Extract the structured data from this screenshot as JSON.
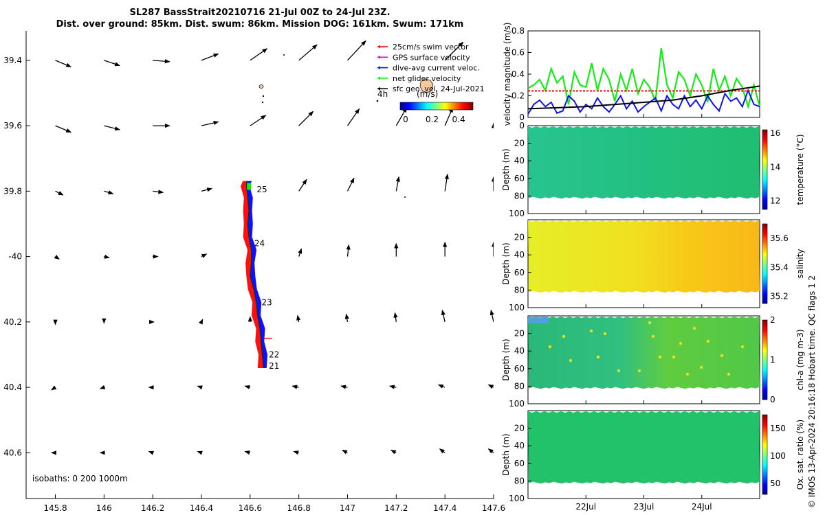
{
  "title": {
    "line1": "SL287 BassStrait20210716 21-Jul 00Z to 24-Jul 23Z.",
    "line2": "Dist. over ground: 85km. Dist. swum: 86km. Mission DOG: 161km. Swum: 171km"
  },
  "colors": {
    "swim": "#ee1111",
    "gps": "#dd00dd",
    "current": "#1111ee",
    "net": "#11ee11",
    "sfc": "#000000",
    "track_red": "#ff1010",
    "track_blue": "#1010ff",
    "track_green": "#10ee10"
  },
  "chart_data": [
    {
      "type": "scatter",
      "name": "map",
      "xlim": [
        145.68,
        147.6
      ],
      "ylim": [
        -40.74,
        -39.31
      ],
      "x_ticks": [
        145.8,
        146,
        146.2,
        146.4,
        146.6,
        146.8,
        147,
        147.2,
        147.4,
        147.6
      ],
      "x_tick_labels": [
        "145.8",
        "146",
        "146.2",
        "146.4",
        "146.6",
        "146.8",
        "147",
        "147.2",
        "147.4",
        "147.6"
      ],
      "y_ticks": [
        -39.4,
        -39.6,
        -39.8,
        -40,
        -40.2,
        -40.4,
        -40.6
      ],
      "y_tick_labels": [
        "39.4",
        "39.6",
        "39.8",
        "-40",
        "40.2",
        "40.4",
        "40.6"
      ],
      "legend": [
        {
          "label": "25cm/s swim vector",
          "color": "#ee1111"
        },
        {
          "label": "GPS surface velocity",
          "color": "#dd00dd"
        },
        {
          "label": "dive-avg current veloc.",
          "color": "#1111ee"
        },
        {
          "label": "net glider velocity",
          "color": "#11ee11"
        },
        {
          "label": "sfc geo. vel. 24-Jul-2021",
          "color": "#000000"
        }
      ],
      "legend_extra": "4h",
      "colorbar": {
        "label": "(m/s)",
        "tick_labels": [
          "0",
          "0.2",
          "0.4"
        ],
        "range": [
          0,
          0.55
        ]
      },
      "isobaths_label": "isobaths: 0   200  1000m",
      "day_labels": [
        {
          "label": "25",
          "lon": 146.61,
          "lat": -39.795
        },
        {
          "label": "24",
          "lon": 146.6,
          "lat": -39.96
        },
        {
          "label": "23",
          "lon": 146.63,
          "lat": -40.14
        },
        {
          "label": "22",
          "lon": 146.66,
          "lat": -40.3
        },
        {
          "label": "21",
          "lon": 146.66,
          "lat": -40.335
        }
      ],
      "track": [
        {
          "lon": 146.655,
          "lat": -40.34
        },
        {
          "lon": 146.65,
          "lat": -40.3
        },
        {
          "lon": 146.645,
          "lat": -40.26
        },
        {
          "lon": 146.64,
          "lat": -40.22
        },
        {
          "lon": 146.63,
          "lat": -40.18
        },
        {
          "lon": 146.625,
          "lat": -40.14
        },
        {
          "lon": 146.615,
          "lat": -40.1
        },
        {
          "lon": 146.6,
          "lat": -40.06
        },
        {
          "lon": 146.605,
          "lat": -40.02
        },
        {
          "lon": 146.605,
          "lat": -39.98
        },
        {
          "lon": 146.595,
          "lat": -39.94
        },
        {
          "lon": 146.59,
          "lat": -39.9
        },
        {
          "lon": 146.595,
          "lat": -39.86
        },
        {
          "lon": 146.59,
          "lat": -39.82
        },
        {
          "lon": 146.585,
          "lat": -39.785
        },
        {
          "lon": 146.585,
          "lat": -39.77
        }
      ],
      "vector_field": {
        "lons": [
          145.8,
          146.0,
          146.2,
          146.4,
          146.6,
          146.8,
          147.0,
          147.2,
          147.4,
          147.6
        ],
        "rows": [
          {
            "lat": -39.4,
            "u": [
              0.12,
              0.12,
              0.13,
              0.13,
              0.13,
              0.14,
              0.14,
              null,
              0.14,
              null
            ],
            "v": [
              -0.05,
              -0.04,
              -0.01,
              0.05,
              0.09,
              0.12,
              0.15,
              null,
              0.14,
              null
            ]
          },
          {
            "lat": -39.6,
            "u": [
              0.12,
              0.12,
              0.13,
              0.13,
              0.12,
              0.11,
              0.09,
              0.08,
              0.06,
              0.0
            ],
            "v": [
              -0.05,
              -0.03,
              0.0,
              0.03,
              0.08,
              0.11,
              0.13,
              0.14,
              0.14,
              0.02
            ]
          },
          {
            "lat": -39.8,
            "u": [
              0.06,
              0.07,
              0.08,
              0.08,
              null,
              0.06,
              0.05,
              0.02,
              0.02,
              0.0
            ],
            "v": [
              -0.03,
              -0.02,
              -0.01,
              0.02,
              null,
              0.09,
              0.1,
              0.11,
              0.13,
              0.11
            ]
          },
          {
            "lat": -40.0,
            "u": [
              0.03,
              0.04,
              0.04,
              0.04,
              null,
              0.02,
              0.01,
              0.0,
              0.0,
              0.0
            ],
            "v": [
              -0.02,
              -0.01,
              0.0,
              0.02,
              null,
              0.06,
              0.09,
              0.1,
              0.11,
              0.11
            ]
          },
          {
            "lat": -40.2,
            "u": [
              0.0,
              0.0,
              0.01,
              0.01,
              0.0,
              -0.01,
              -0.01,
              -0.01,
              -0.02,
              -0.02
            ],
            "v": [
              -0.02,
              -0.01,
              0.0,
              0.02,
              0.04,
              0.05,
              0.06,
              0.07,
              0.09,
              0.09
            ]
          },
          {
            "lat": -40.4,
            "u": [
              -0.03,
              -0.03,
              -0.03,
              -0.03,
              -0.04,
              -0.05,
              -0.05,
              -0.05,
              -0.05,
              -0.04
            ],
            "v": [
              -0.02,
              -0.01,
              0.0,
              0.01,
              0.01,
              0.01,
              0.01,
              0.01,
              0.02,
              0.02
            ]
          },
          {
            "lat": -40.6,
            "u": [
              -0.03,
              -0.03,
              -0.03,
              -0.03,
              -0.04,
              -0.04,
              -0.04,
              -0.04,
              -0.04,
              -0.04
            ],
            "v": [
              0.0,
              0.0,
              0.01,
              0.01,
              0.01,
              0.01,
              0.02,
              0.02,
              0.03,
              0.03
            ]
          }
        ]
      }
    },
    {
      "type": "line",
      "name": "velocity-magnitude",
      "ylabel": "velocity magnitude (m/s)",
      "ylim": [
        0,
        0.8
      ],
      "y_ticks": [
        0,
        0.2,
        0.4,
        0.6,
        0.8
      ],
      "y_tick_labels": [
        "0",
        "0.2",
        "0.4",
        "0.6",
        "0.8"
      ],
      "xlim": [
        21.0,
        25.0
      ],
      "x_ticks": [
        22,
        23,
        24
      ],
      "x_tick_labels": [
        "22Jul",
        "23Jul",
        "24Jul"
      ],
      "series": [
        {
          "name": "net glider velocity",
          "color": "#11ee11",
          "x": [
            21.0,
            21.1,
            21.2,
            21.3,
            21.4,
            21.5,
            21.6,
            21.7,
            21.8,
            21.9,
            22.0,
            22.1,
            22.2,
            22.3,
            22.4,
            22.5,
            22.6,
            22.7,
            22.8,
            22.9,
            23.0,
            23.1,
            23.2,
            23.3,
            23.4,
            23.5,
            23.6,
            23.7,
            23.8,
            23.9,
            24.0,
            24.1,
            24.2,
            24.3,
            24.4,
            24.5,
            24.6,
            24.7,
            24.8,
            24.9,
            25.0
          ],
          "values": [
            0.27,
            0.3,
            0.35,
            0.25,
            0.45,
            0.32,
            0.38,
            0.12,
            0.42,
            0.3,
            0.28,
            0.5,
            0.25,
            0.45,
            0.35,
            0.15,
            0.4,
            0.25,
            0.45,
            0.22,
            0.35,
            0.28,
            0.15,
            0.64,
            0.3,
            0.18,
            0.42,
            0.35,
            0.2,
            0.4,
            0.3,
            0.14,
            0.45,
            0.25,
            0.38,
            0.2,
            0.36,
            0.28,
            0.1,
            0.3,
            0.1
          ]
        },
        {
          "name": "dive-avg current veloc.",
          "color": "#1111ee",
          "x": [
            21.0,
            21.1,
            21.2,
            21.3,
            21.4,
            21.5,
            21.6,
            21.7,
            21.8,
            21.9,
            22.0,
            22.1,
            22.2,
            22.3,
            22.4,
            22.5,
            22.6,
            22.7,
            22.8,
            22.9,
            23.0,
            23.1,
            23.2,
            23.3,
            23.4,
            23.5,
            23.6,
            23.7,
            23.8,
            23.9,
            24.0,
            24.1,
            24.2,
            24.3,
            24.4,
            24.5,
            24.6,
            24.7,
            24.8,
            24.9,
            25.0
          ],
          "values": [
            0.03,
            0.12,
            0.16,
            0.1,
            0.14,
            0.04,
            0.06,
            0.2,
            0.15,
            0.05,
            0.12,
            0.08,
            0.18,
            0.1,
            0.05,
            0.12,
            0.2,
            0.08,
            0.15,
            0.05,
            0.1,
            0.14,
            0.18,
            0.06,
            0.2,
            0.12,
            0.08,
            0.2,
            0.1,
            0.16,
            0.08,
            0.2,
            0.12,
            0.06,
            0.22,
            0.15,
            0.18,
            0.1,
            0.25,
            0.12,
            0.1
          ]
        },
        {
          "name": "25cm/s swim vector",
          "color": "#ee1111",
          "x": [
            21.0,
            25.0
          ],
          "values": [
            0.245,
            0.245
          ]
        },
        {
          "name": "sfc geo. vel.",
          "color": "#000000",
          "x": [
            21.0,
            21.5,
            22.0,
            22.5,
            23.0,
            23.5,
            24.0,
            24.5,
            25.0
          ],
          "values": [
            0.08,
            0.09,
            0.1,
            0.12,
            0.14,
            0.16,
            0.2,
            0.25,
            0.29
          ]
        }
      ]
    },
    {
      "type": "heatmap",
      "name": "temperature",
      "ylabel": "Depth (m)",
      "clabel": "temperature (°C)",
      "ylim": [
        0,
        100
      ],
      "y_tick_labels": [
        "0",
        "20",
        "40",
        "60",
        "80",
        "100"
      ],
      "clim": [
        11.5,
        16.2
      ],
      "colorbar_tick_labels": [
        "12",
        "14",
        "16"
      ],
      "colorbar_ticks": [
        12,
        14,
        16
      ],
      "x_profile_day": [
        21.0,
        21.5,
        22.0,
        22.5,
        23.0,
        23.5,
        24.0,
        24.5,
        25.0
      ],
      "values": [
        13.9,
        13.8,
        13.8,
        13.8,
        13.7,
        13.7,
        13.8,
        13.7,
        13.7
      ]
    },
    {
      "type": "heatmap",
      "name": "salinity",
      "ylabel": "Depth (m)",
      "clabel": "salinity",
      "ylim": [
        0,
        100
      ],
      "y_tick_labels": [
        "20",
        "40",
        "60",
        "80",
        "100"
      ],
      "clim": [
        35.15,
        35.7
      ],
      "colorbar_tick_labels": [
        "35.2",
        "35.4",
        "35.6"
      ],
      "colorbar_ticks": [
        35.2,
        35.4,
        35.6
      ],
      "x_profile_day": [
        21.0,
        21.5,
        22.0,
        22.5,
        23.0,
        23.5,
        24.0,
        24.5,
        25.0
      ],
      "values": [
        35.53,
        35.53,
        35.54,
        35.54,
        35.55,
        35.56,
        35.57,
        35.58,
        35.58
      ]
    },
    {
      "type": "heatmap",
      "name": "chl-a",
      "ylabel": "Depth (m)",
      "clabel": "chl-a (mg m-3)",
      "ylim": [
        0,
        100
      ],
      "y_tick_labels": [
        "20",
        "40",
        "60",
        "80",
        "100"
      ],
      "clim": [
        0,
        2
      ],
      "colorbar_tick_labels": [
        "0",
        "1",
        "2"
      ],
      "colorbar_ticks": [
        0,
        1,
        2
      ],
      "x_profile_day": [
        21.0,
        21.5,
        22.0,
        22.5,
        23.0,
        23.5,
        24.0,
        24.5,
        25.0
      ],
      "values": [
        0.7,
        0.75,
        0.7,
        0.72,
        0.85,
        0.9,
        0.85,
        0.8,
        0.8
      ]
    },
    {
      "type": "heatmap",
      "name": "oxygen-saturation",
      "ylabel": "Depth (m)",
      "clabel": "Ox. sat. ratio (%)",
      "ylim": [
        0,
        100
      ],
      "y_tick_labels": [
        "20",
        "40",
        "60",
        "80",
        "100"
      ],
      "clim": [
        30,
        175
      ],
      "colorbar_tick_labels": [
        "50",
        "100",
        "150"
      ],
      "colorbar_ticks": [
        50,
        100,
        150
      ],
      "x_profile_day": [
        21.0,
        21.5,
        22.0,
        22.5,
        23.0,
        23.5,
        24.0,
        24.5,
        25.0
      ],
      "values": [
        100,
        100,
        100,
        100,
        100,
        100,
        100,
        100,
        100
      ]
    }
  ],
  "side_text": "© IMOS 13-Apr-2024 20:16:18 Hobart time. QC flags 1  2"
}
